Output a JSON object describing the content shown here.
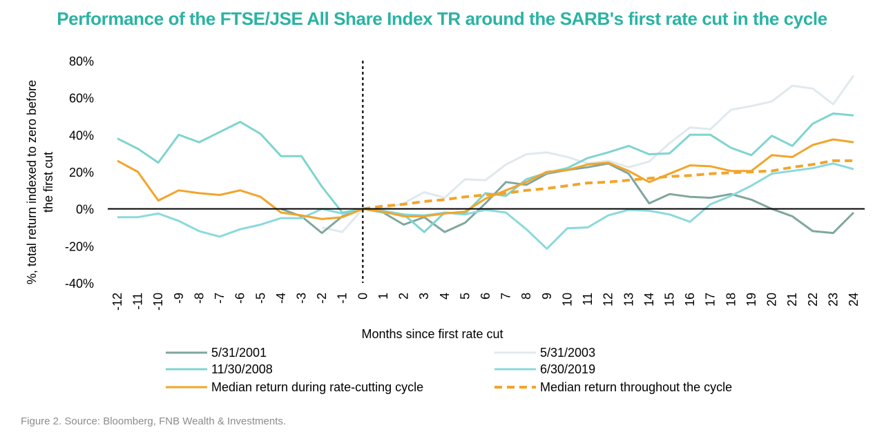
{
  "title": "Performance of the FTSE/JSE All Share Index TR around the SARB's first rate cut in the cycle",
  "source": "Figure 2. Source: Bloomberg, FNB Wealth & Investments.",
  "colors": {
    "title": "#2bb3a3",
    "s2001": "#7fa69d",
    "s2003": "#dfe9ee",
    "s2008": "#7ed4cf",
    "s2019": "#8ad9dc",
    "median_cut": "#f2a42a",
    "median_cycle": "#f2a42a",
    "source": "#8c8c8c"
  },
  "chart_data": {
    "type": "line",
    "xlabel": "Months since first rate cut",
    "ylabel_lines": [
      "%, total return indexed to zero before",
      "the first cut"
    ],
    "ylim": [
      -40,
      80
    ],
    "yticks": [
      -40,
      -20,
      0,
      20,
      40,
      60,
      80
    ],
    "ytick_labels": [
      "-40%",
      "-20%",
      "0%",
      "20%",
      "40%",
      "60%",
      "80%"
    ],
    "x": [
      -12,
      -11,
      -10,
      -9,
      -8,
      -7,
      -6,
      -5,
      -4,
      -3,
      -2,
      -1,
      0,
      1,
      2,
      3,
      4,
      5,
      6,
      7,
      8,
      9,
      10,
      11,
      12,
      13,
      14,
      15,
      16,
      17,
      18,
      19,
      20,
      21,
      22,
      23,
      24
    ],
    "vertical_marker_x": 0,
    "legend_position": "bottom",
    "series": [
      {
        "name": "5/31/2001",
        "style": "solid",
        "color_key": "s2001",
        "values": [
          null,
          null,
          null,
          null,
          null,
          null,
          null,
          null,
          0,
          -4,
          -13,
          -4,
          0,
          -2,
          -8.5,
          -4.5,
          -12.5,
          -7.5,
          3,
          14.5,
          13,
          19,
          21,
          22.5,
          24.5,
          19,
          3,
          8,
          6.5,
          6,
          8,
          5,
          0,
          -4,
          -12,
          -13,
          -2
        ]
      },
      {
        "name": "5/31/2003",
        "style": "solid",
        "color_key": "s2003",
        "values": [
          null,
          null,
          null,
          null,
          null,
          null,
          null,
          null,
          null,
          null,
          -10,
          -12.5,
          0,
          0,
          3,
          9,
          6,
          16,
          15.5,
          24,
          29.5,
          30.5,
          28,
          24.5,
          26,
          22.5,
          25.5,
          35.5,
          44,
          43,
          53.5,
          55.5,
          58,
          66.5,
          65,
          56.5,
          72
        ]
      },
      {
        "name": "11/30/2008",
        "style": "solid",
        "color_key": "s2008",
        "values": [
          38,
          32.5,
          25,
          40,
          36,
          41.5,
          47,
          40.5,
          28.5,
          28.5,
          12,
          -2,
          0,
          -2,
          -3,
          -12.5,
          -2,
          -2.5,
          8.5,
          7,
          16,
          19.5,
          22,
          27.5,
          30.5,
          34,
          29.5,
          30,
          40,
          40,
          33,
          29,
          39.5,
          34,
          46,
          51.5,
          50.5
        ]
      },
      {
        "name": "6/30/2019",
        "style": "solid",
        "color_key": "s2019",
        "values": [
          -4.5,
          -4.5,
          -2.5,
          -6.5,
          -12,
          -15,
          -11,
          -8.5,
          -5,
          -5,
          0,
          -2.5,
          0,
          -1,
          -3,
          -3.5,
          -2,
          -3,
          -0.5,
          -2,
          -11,
          -21.5,
          -10.5,
          -10,
          -3.5,
          -0.5,
          -1,
          -3,
          -7,
          2.5,
          7,
          12.5,
          19,
          20.5,
          22,
          24.5,
          21.5
        ]
      },
      {
        "name": "Median return during rate-cutting cycle",
        "style": "solid",
        "color_key": "median_cut",
        "values": [
          26,
          20,
          4.5,
          10,
          8.5,
          7.5,
          10,
          6.5,
          -2,
          -3.5,
          -5.5,
          -4.5,
          0,
          -1.5,
          -4,
          -4,
          -2.5,
          -1.5,
          5.5,
          10,
          14.5,
          20,
          21,
          24,
          25,
          20.5,
          14.5,
          19,
          23.5,
          23,
          20.5,
          20.5,
          29,
          28,
          34.5,
          37.5,
          36
        ]
      },
      {
        "name": "Median return throughout the cycle",
        "style": "dashed",
        "color_key": "median_cycle",
        "values": [
          null,
          null,
          null,
          null,
          null,
          null,
          null,
          null,
          null,
          null,
          null,
          null,
          0,
          1.5,
          2.5,
          4,
          5,
          6.5,
          7.5,
          8.5,
          10,
          11,
          12.5,
          14,
          14.5,
          15.5,
          16.5,
          17.5,
          18,
          19,
          19.5,
          20,
          20.5,
          22.5,
          24,
          26,
          26
        ]
      }
    ]
  }
}
